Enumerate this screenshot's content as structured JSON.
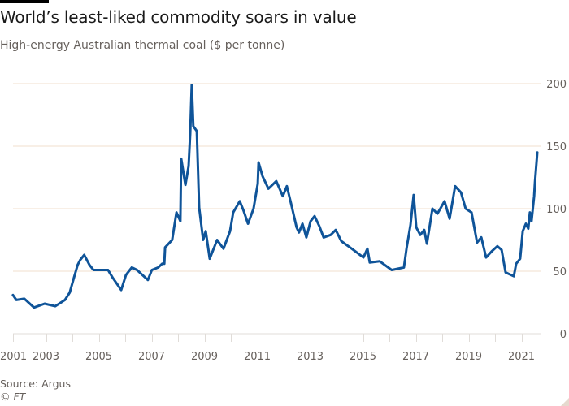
{
  "header": {
    "title": "World’s least-liked commodity soars in value",
    "subtitle": "High-energy Australian thermal coal ($ per tonne)"
  },
  "footer": {
    "source": "Source: Argus",
    "credit": "© FT"
  },
  "colors": {
    "line": "#0f5499",
    "grid": "#f2dfce",
    "axis": "#e0dcd8",
    "text": "#66605c",
    "title": "#1a1a1a"
  },
  "chart_data": {
    "type": "line",
    "title": "World’s least-liked commodity soars in value",
    "subtitle": "High-energy Australian thermal coal ($ per tonne)",
    "xlabel": "",
    "ylabel": "",
    "y_axis_side": "right",
    "ylim": [
      0,
      200
    ],
    "xlim": [
      2001.75,
      2021.6
    ],
    "yticks": [
      0,
      50,
      100,
      150,
      200
    ],
    "xticks": [
      {
        "label": "2001",
        "year": 2001.75
      },
      {
        "label": "2003",
        "year": 2003
      },
      {
        "label": "2005",
        "year": 2005
      },
      {
        "label": "2007",
        "year": 2007
      },
      {
        "label": "2009",
        "year": 2009
      },
      {
        "label": "2011",
        "year": 2011
      },
      {
        "label": "2013",
        "year": 2013
      },
      {
        "label": "2015",
        "year": 2015
      },
      {
        "label": "2017",
        "year": 2017
      },
      {
        "label": "2019",
        "year": 2019
      },
      {
        "label": "2021",
        "year": 2021
      }
    ],
    "minor_tick_years": [
      2002,
      2003,
      2004,
      2005,
      2006,
      2007,
      2008,
      2009,
      2010,
      2011,
      2012,
      2013,
      2014,
      2015,
      2016,
      2017,
      2018,
      2019,
      2020,
      2021
    ],
    "grid": true,
    "legend": "none",
    "series": [
      {
        "name": "High-energy Australian thermal coal",
        "x": [
          2001.75,
          2001.88,
          2002.18,
          2002.55,
          2002.95,
          2003.35,
          2003.72,
          2003.9,
          2004.05,
          2004.2,
          2004.3,
          2004.45,
          2004.65,
          2004.8,
          2005.0,
          2005.35,
          2005.52,
          2005.85,
          2006.03,
          2006.25,
          2006.45,
          2006.86,
          2007.01,
          2007.25,
          2007.4,
          2007.48,
          2007.51,
          2007.78,
          2007.94,
          2008.09,
          2008.12,
          2008.28,
          2008.4,
          2008.46,
          2008.52,
          2008.58,
          2008.71,
          2008.8,
          2008.95,
          2009.05,
          2009.2,
          2009.48,
          2009.72,
          2009.97,
          2010.09,
          2010.34,
          2010.49,
          2010.65,
          2010.86,
          2011.02,
          2011.05,
          2011.2,
          2011.42,
          2011.72,
          2011.97,
          2012.12,
          2012.28,
          2012.49,
          2012.58,
          2012.71,
          2012.86,
          2013.02,
          2013.17,
          2013.35,
          2013.51,
          2013.78,
          2013.97,
          2014.18,
          2014.58,
          2015.02,
          2015.17,
          2015.26,
          2015.63,
          2016.09,
          2016.55,
          2016.65,
          2016.8,
          2016.92,
          2017.02,
          2017.17,
          2017.32,
          2017.42,
          2017.63,
          2017.82,
          2018.09,
          2018.28,
          2018.49,
          2018.71,
          2018.89,
          2019.11,
          2019.32,
          2019.48,
          2019.66,
          2019.88,
          2020.09,
          2020.25,
          2020.4,
          2020.71,
          2020.8,
          2020.95,
          2021.05,
          2021.17,
          2021.26,
          2021.32,
          2021.38,
          2021.48,
          2021.51,
          2021.6
        ],
        "values": [
          31,
          27,
          28,
          21,
          24,
          22,
          27,
          33,
          44,
          55,
          59,
          63,
          55,
          51,
          51,
          51,
          45,
          35,
          47,
          53,
          51,
          43,
          51,
          53,
          56,
          56,
          69,
          75,
          97,
          90,
          140,
          119,
          134,
          160,
          199,
          166,
          162,
          101,
          75,
          82,
          60,
          75,
          68,
          82,
          97,
          106,
          98,
          88,
          100,
          120,
          137,
          126,
          116,
          122,
          110,
          118,
          104,
          85,
          81,
          88,
          77,
          90,
          94,
          86,
          77,
          79,
          83,
          74,
          68,
          61,
          68,
          57,
          58,
          51,
          53,
          68,
          87,
          111,
          85,
          79,
          83,
          72,
          100,
          96,
          106,
          92,
          118,
          113,
          100,
          97,
          73,
          77,
          61,
          66,
          70,
          67,
          49,
          46,
          56,
          60,
          82,
          88,
          84,
          97,
          90,
          110,
          121,
          145
        ]
      }
    ]
  }
}
